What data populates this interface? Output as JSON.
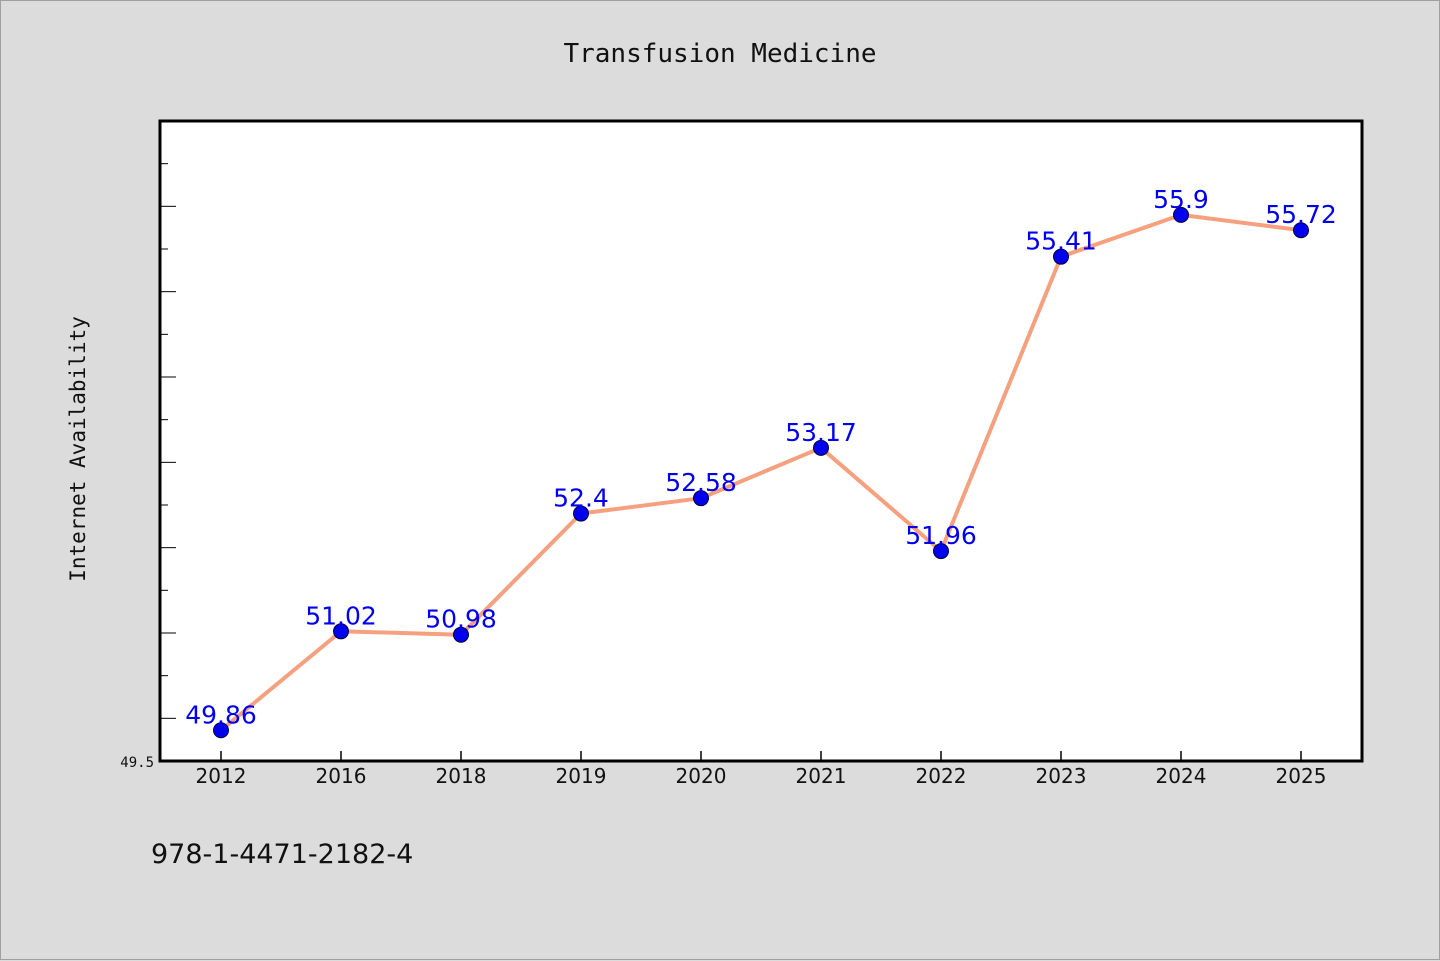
{
  "chart_data": {
    "type": "line",
    "title": "Transfusion Medicine",
    "ylabel": "Internet Availability",
    "xlabel": "",
    "categories": [
      "2012",
      "2016",
      "2018",
      "2019",
      "2020",
      "2021",
      "2022",
      "2023",
      "2024",
      "2025"
    ],
    "values": [
      49.86,
      51.02,
      50.98,
      52.4,
      52.58,
      53.17,
      51.96,
      55.41,
      55.9,
      55.72
    ],
    "data_labels": [
      "49.86",
      "51.02",
      "50.98",
      "52.4",
      "52.58",
      "53.17",
      "51.96",
      "55.41",
      "55.9",
      "55.72"
    ],
    "ylim": [
      49.5,
      57.0
    ],
    "ytick_labels": [
      "49.5"
    ],
    "grid": false,
    "legend": "none",
    "colors": {
      "line": "#f5a07e",
      "marker": "#0000ee",
      "label": "#0000ee",
      "background": "#dcdcdc",
      "plot_background": "#ffffff"
    }
  },
  "footer": {
    "text": "978-1-4471-2182-4"
  }
}
